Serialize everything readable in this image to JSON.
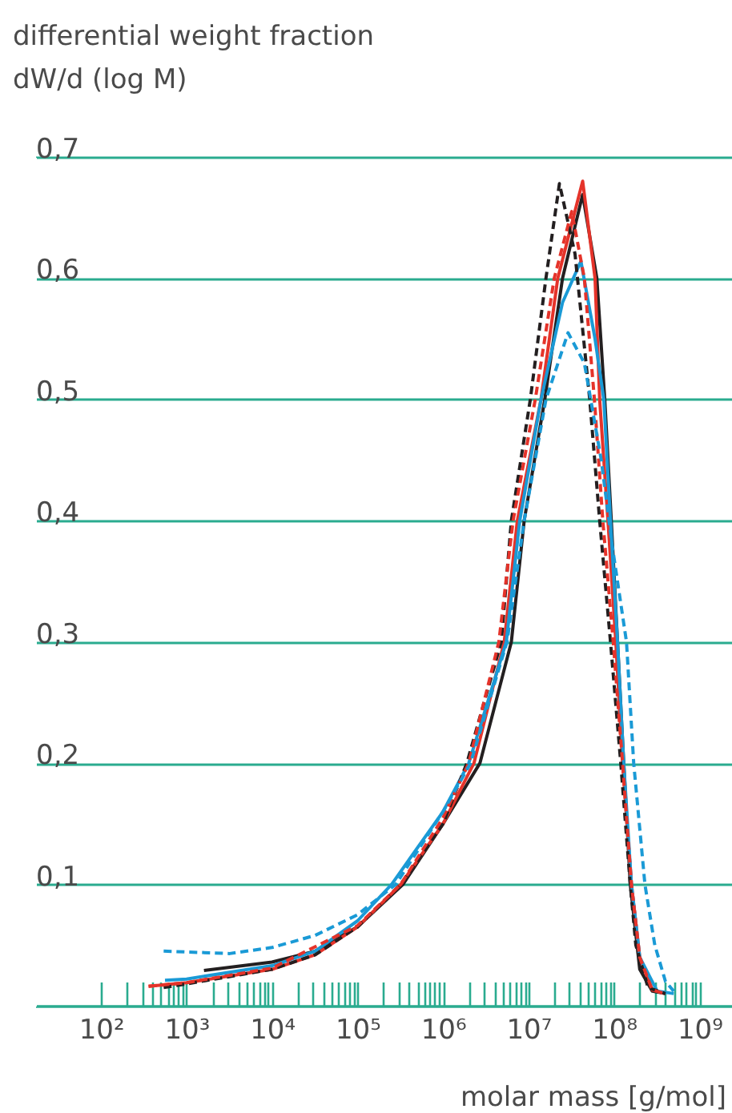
{
  "chart_data": {
    "type": "line",
    "xlabel": "molar mass [g/mol]",
    "ylabel": "differential weight fraction\ndW/d (log M)",
    "log": "x",
    "grid": "y",
    "xlim": [
      17,
      2400000000.0
    ],
    "ylim": [
      0,
      0.7
    ],
    "xticks": [
      {
        "value": 100,
        "label": "10²"
      },
      {
        "value": 200,
        "label": null
      },
      {
        "value": 300,
        "label": null
      },
      {
        "value": 400,
        "label": null
      },
      {
        "value": 500,
        "label": null
      },
      {
        "value": 600,
        "label": null
      },
      {
        "value": 700,
        "label": null
      },
      {
        "value": 800,
        "label": null
      },
      {
        "value": 900,
        "label": null
      },
      {
        "value": 1000,
        "label": "10³"
      },
      {
        "value": 2000,
        "label": null
      },
      {
        "value": 3000,
        "label": null
      },
      {
        "value": 4000,
        "label": null
      },
      {
        "value": 5000,
        "label": null
      },
      {
        "value": 6000,
        "label": null
      },
      {
        "value": 7000,
        "label": null
      },
      {
        "value": 8000,
        "label": null
      },
      {
        "value": 9000,
        "label": null
      },
      {
        "value": 10000.0,
        "label": "10⁴"
      },
      {
        "value": 20000.0,
        "label": null
      },
      {
        "value": 30000.0,
        "label": null
      },
      {
        "value": 40000.0,
        "label": null
      },
      {
        "value": 50000.0,
        "label": null
      },
      {
        "value": 60000.0,
        "label": null
      },
      {
        "value": 70000.0,
        "label": null
      },
      {
        "value": 80000.0,
        "label": null
      },
      {
        "value": 90000.0,
        "label": null
      },
      {
        "value": 100000.0,
        "label": "10⁵"
      },
      {
        "value": 200000.0,
        "label": null
      },
      {
        "value": 300000.0,
        "label": null
      },
      {
        "value": 400000.0,
        "label": null
      },
      {
        "value": 500000.0,
        "label": null
      },
      {
        "value": 600000.0,
        "label": null
      },
      {
        "value": 700000.0,
        "label": null
      },
      {
        "value": 800000.0,
        "label": null
      },
      {
        "value": 900000.0,
        "label": null
      },
      {
        "value": 1000000.0,
        "label": "10⁶"
      },
      {
        "value": 2000000.0,
        "label": null
      },
      {
        "value": 3000000.0,
        "label": null
      },
      {
        "value": 4000000.0,
        "label": null
      },
      {
        "value": 5000000.0,
        "label": null
      },
      {
        "value": 6000000.0,
        "label": null
      },
      {
        "value": 7000000.0,
        "label": null
      },
      {
        "value": 8000000.0,
        "label": null
      },
      {
        "value": 9000000.0,
        "label": null
      },
      {
        "value": 10000000.0,
        "label": "10⁷"
      },
      {
        "value": 20000000.0,
        "label": null
      },
      {
        "value": 30000000.0,
        "label": null
      },
      {
        "value": 40000000.0,
        "label": null
      },
      {
        "value": 50000000.0,
        "label": null
      },
      {
        "value": 60000000.0,
        "label": null
      },
      {
        "value": 70000000.0,
        "label": null
      },
      {
        "value": 80000000.0,
        "label": null
      },
      {
        "value": 90000000.0,
        "label": null
      },
      {
        "value": 100000000.0,
        "label": "10⁸"
      },
      {
        "value": 200000000.0,
        "label": null
      },
      {
        "value": 300000000.0,
        "label": null
      },
      {
        "value": 400000000.0,
        "label": null
      },
      {
        "value": 500000000.0,
        "label": null
      },
      {
        "value": 600000000.0,
        "label": null
      },
      {
        "value": 700000000.0,
        "label": null
      },
      {
        "value": 800000000.0,
        "label": null
      },
      {
        "value": 900000000.0,
        "label": null
      },
      {
        "value": 1000000000.0,
        "label": "10⁹"
      }
    ],
    "yticks": [
      {
        "value": 0,
        "label": null
      },
      {
        "value": 0.1,
        "label": "0,1"
      },
      {
        "value": 0.2,
        "label": "0,2"
      },
      {
        "value": 0.3,
        "label": "0,3"
      },
      {
        "value": 0.4,
        "label": "0,4"
      },
      {
        "value": 0.5,
        "label": "0,5"
      },
      {
        "value": 0.6,
        "label": "0,6"
      },
      {
        "value": 0.7,
        "label": "0,7"
      }
    ],
    "series": [
      {
        "color": "#231f20",
        "line_style": "solid",
        "x": [
          1600,
          10000.0,
          32000.0,
          100000.0,
          340000.0,
          1000000.0,
          2700000.0,
          6300000.0,
          8900000.0,
          15500000.0,
          25000000.0,
          43000000.0,
          63000000.0,
          78000000.0,
          93000000.0,
          110000000.0,
          130000000.0,
          155000000.0,
          200000000.0,
          280000000.0,
          400000000.0
        ],
        "values": [
          0.029,
          0.036,
          0.045,
          0.065,
          0.1,
          0.15,
          0.2,
          0.3,
          0.4,
          0.5,
          0.6,
          0.669,
          0.6,
          0.5,
          0.4,
          0.3,
          0.2,
          0.1,
          0.03,
          0.012,
          0.01
        ]
      },
      {
        "color": "#e5332a",
        "line_style": "solid",
        "x": [
          360,
          1000,
          10000.0,
          32000.0,
          100000.0,
          320000.0,
          1000000.0,
          2300000.0,
          5200000.0,
          7400000.0,
          14000000.0,
          22000000.0,
          43000000.0,
          60000000.0,
          68000000.0,
          85000000.0,
          105000000.0,
          126000000.0,
          160000000.0,
          200000000.0,
          280000000.0,
          400000000.0
        ],
        "values": [
          0.016,
          0.019,
          0.03,
          0.042,
          0.065,
          0.1,
          0.15,
          0.2,
          0.3,
          0.4,
          0.5,
          0.6,
          0.68,
          0.6,
          0.5,
          0.4,
          0.3,
          0.2,
          0.1,
          0.04,
          0.013,
          0.01
        ]
      },
      {
        "color": "#1a9ad6",
        "line_style": "solid",
        "x": [
          560,
          1000,
          10000.0,
          32000.0,
          100000.0,
          250000.0,
          1000000.0,
          2000000.0,
          5500000.0,
          7900000.0,
          14000000.0,
          25000000.0,
          41000000.0,
          60000000.0,
          76000000.0,
          91000000.0,
          110000000.0,
          130000000.0,
          160000000.0,
          200000000.0,
          320000000.0,
          500000000.0
        ],
        "values": [
          0.021,
          0.022,
          0.033,
          0.045,
          0.07,
          0.1,
          0.16,
          0.2,
          0.3,
          0.4,
          0.5,
          0.58,
          0.614,
          0.55,
          0.5,
          0.4,
          0.3,
          0.2,
          0.1,
          0.04,
          0.012,
          0.01
        ]
      },
      {
        "color": "#231f20",
        "line_style": "dashed",
        "x": [
          540,
          1000,
          10000.0,
          32000.0,
          100000.0,
          320000.0,
          1000000.0,
          1900000.0,
          4800000.0,
          6300000.0,
          10500000.0,
          16000000.0,
          23000000.0,
          35000000.0,
          52000000.0,
          68000000.0,
          91000000.0,
          120000000.0,
          155000000.0,
          180000000.0,
          250000000.0,
          400000000.0
        ],
        "values": [
          0.015,
          0.018,
          0.03,
          0.042,
          0.065,
          0.1,
          0.15,
          0.2,
          0.3,
          0.4,
          0.5,
          0.6,
          0.678,
          0.62,
          0.5,
          0.4,
          0.3,
          0.2,
          0.1,
          0.05,
          0.015,
          0.01
        ]
      },
      {
        "color": "#e5332a",
        "line_style": "dashed",
        "x": [
          360,
          1000,
          10000.0,
          100000.0,
          320000.0,
          1000000.0,
          2000000.0,
          4500000.0,
          6600000.0,
          12000000.0,
          20000000.0,
          32000000.0,
          45000000.0,
          59000000.0,
          74000000.0,
          98000000.0,
          126000000.0,
          160000000.0,
          200000000.0,
          280000000.0,
          400000000.0
        ],
        "values": [
          0.016,
          0.019,
          0.031,
          0.066,
          0.1,
          0.155,
          0.2,
          0.3,
          0.4,
          0.5,
          0.6,
          0.655,
          0.6,
          0.5,
          0.4,
          0.3,
          0.2,
          0.1,
          0.04,
          0.013,
          0.01
        ]
      },
      {
        "color": "#1a9ad6",
        "line_style": "dashed",
        "x": [
          540,
          3200,
          10000.0,
          32000.0,
          100000.0,
          280000.0,
          1000000.0,
          2100000.0,
          5600000.0,
          8900000.0,
          16000000.0,
          29000000.0,
          45000000.0,
          71000000.0,
          95000000.0,
          140000000.0,
          170000000.0,
          230000000.0,
          300000000.0,
          400000000.0,
          500000000.0
        ],
        "values": [
          0.045,
          0.043,
          0.048,
          0.058,
          0.075,
          0.1,
          0.16,
          0.2,
          0.3,
          0.4,
          0.5,
          0.555,
          0.53,
          0.45,
          0.38,
          0.3,
          0.2,
          0.1,
          0.05,
          0.02,
          0.012
        ]
      }
    ]
  }
}
